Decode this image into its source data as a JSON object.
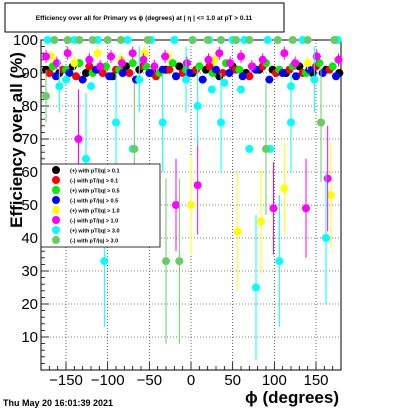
{
  "chart_data": {
    "type": "scatter",
    "title": "Efficiency over all for Primary vs ϕ (degrees) at | η | <= 1.0 at pT > 0.11",
    "xlabel": "ϕ (degrees)",
    "ylabel": "Efficiency over all (%)",
    "xlim": [
      -180,
      180
    ],
    "ylim": [
      0,
      100
    ],
    "x_ticks": [
      -150,
      -100,
      -50,
      0,
      50,
      100,
      150
    ],
    "y_ticks": [
      10,
      20,
      30,
      40,
      50,
      60,
      70,
      80,
      90,
      100
    ],
    "grid": true,
    "legend_placement": "middle-left",
    "series": [
      {
        "name": "(+) with pT/|q| > 0.1",
        "color": "#000000",
        "x": [
          -174,
          -158,
          -142,
          -126,
          -110,
          -94,
          -78,
          -62,
          -46,
          -30,
          -14,
          2,
          18,
          34,
          50,
          66,
          82,
          98,
          114,
          130,
          146,
          162,
          178
        ],
        "y": [
          91,
          90,
          92,
          90,
          91,
          89,
          92,
          91,
          90,
          91,
          92,
          90,
          91,
          89,
          92,
          90,
          91,
          91,
          90,
          92,
          90,
          91,
          90
        ],
        "err": [
          1,
          1,
          1,
          1,
          1,
          1,
          1,
          1,
          1,
          1,
          1,
          1,
          1,
          1,
          1,
          1,
          1,
          1,
          1,
          1,
          1,
          1,
          1
        ]
      },
      {
        "name": "(-) with pT/|q| > 0.1",
        "color": "#ff0000",
        "x": [
          -170,
          -154,
          -138,
          -122,
          -106,
          -90,
          -74,
          -58,
          -42,
          -26,
          -10,
          6,
          22,
          38,
          54,
          70,
          86,
          102,
          118,
          134,
          150,
          166
        ],
        "y": [
          90,
          91,
          89,
          92,
          90,
          91,
          90,
          92,
          89,
          91,
          90,
          91,
          92,
          90,
          91,
          89,
          92,
          90,
          91,
          90,
          92,
          91
        ],
        "err": [
          1,
          1,
          1,
          1,
          1,
          1,
          1,
          1,
          1,
          1,
          1,
          1,
          1,
          1,
          1,
          1,
          1,
          1,
          1,
          1,
          1,
          1
        ]
      },
      {
        "name": "(+) with pT/|q| > 0.5",
        "color": "#00ee00",
        "x": [
          -166,
          -150,
          -134,
          -118,
          -102,
          -86,
          -70,
          -54,
          -38,
          -22,
          -6,
          10,
          26,
          42,
          58,
          74,
          90,
          106,
          122,
          138,
          154,
          170
        ],
        "y": [
          92,
          91,
          93,
          90,
          92,
          91,
          93,
          92,
          90,
          93,
          91,
          92,
          90,
          93,
          91,
          92,
          93,
          91,
          92,
          90,
          93,
          92
        ],
        "err": [
          1,
          1,
          1,
          1,
          1,
          1,
          1,
          1,
          1,
          1,
          1,
          1,
          1,
          1,
          1,
          1,
          1,
          1,
          1,
          1,
          1,
          1
        ]
      },
      {
        "name": "(-) with pT/|q| > 0.5",
        "color": "#0000ff",
        "x": [
          -162,
          -146,
          -130,
          -114,
          -98,
          -82,
          -66,
          -50,
          -34,
          -18,
          -2,
          14,
          30,
          46,
          62,
          78,
          94,
          110,
          126,
          142,
          158,
          174
        ],
        "y": [
          89,
          90,
          88,
          91,
          89,
          90,
          88,
          90,
          91,
          89,
          90,
          88,
          91,
          90,
          89,
          91,
          88,
          90,
          89,
          91,
          90,
          89
        ],
        "err": [
          1,
          1,
          1,
          1,
          1,
          1,
          1,
          1,
          1,
          1,
          1,
          1,
          1,
          1,
          1,
          1,
          1,
          1,
          1,
          1,
          1,
          1
        ]
      },
      {
        "name": "(+) with pT/|q| > 1.0",
        "color": "#ffff00",
        "x": [
          -168,
          -140,
          -112,
          -84,
          -56,
          -28,
          0,
          28,
          56,
          84,
          112,
          140,
          168
        ],
        "y": [
          95,
          93,
          96,
          94,
          96,
          95,
          50,
          94,
          42,
          45,
          55,
          93,
          53
        ],
        "err": [
          2,
          2,
          2,
          2,
          2,
          2,
          15,
          2,
          18,
          16,
          14,
          2,
          16
        ]
      },
      {
        "name": "(-) with pT/|q| > 1.0",
        "color": "#ff00ff",
        "x": [
          -174,
          -161,
          -148,
          -135,
          -122,
          -109,
          -96,
          -83,
          -70,
          -57,
          -44,
          -31,
          -18,
          -5,
          8,
          21,
          34,
          47,
          60,
          73,
          86,
          99,
          112,
          125,
          138,
          151,
          164,
          177
        ],
        "y": [
          95,
          93,
          96,
          70,
          94,
          92,
          95,
          93,
          96,
          94,
          92,
          95,
          50,
          93,
          56,
          94,
          96,
          93,
          95,
          92,
          94,
          49,
          96,
          93,
          49,
          95,
          58,
          94
        ],
        "err": [
          2,
          2,
          2,
          15,
          2,
          2,
          2,
          2,
          2,
          2,
          2,
          2,
          14,
          2,
          15,
          2,
          2,
          2,
          2,
          2,
          2,
          14,
          2,
          2,
          15,
          2,
          16,
          2
        ]
      },
      {
        "name": "(+) with pT/|q| > 3.0",
        "color": "#00ffff",
        "x": [
          -172,
          -158,
          -140,
          -126,
          -112,
          -104,
          -90,
          -76,
          -62,
          -48,
          -34,
          -20,
          -6,
          8,
          22,
          36,
          50,
          64,
          78,
          92,
          106,
          120,
          134,
          148,
          162,
          176
        ],
        "y": [
          100,
          86,
          100,
          64,
          100,
          33,
          75,
          100,
          88,
          100,
          75,
          100,
          88,
          80,
          100,
          75,
          100,
          100,
          25,
          100,
          33,
          75,
          100,
          88,
          40,
          100
        ],
        "err": [
          0,
          8,
          0,
          20,
          0,
          20,
          15,
          0,
          10,
          0,
          15,
          0,
          10,
          12,
          0,
          15,
          0,
          0,
          22,
          0,
          20,
          15,
          0,
          10,
          20,
          0
        ],
        "hi_marks": [
          [
            -150,
            88
          ],
          [
            -120,
            86
          ],
          [
            -70,
            67
          ],
          [
            25,
            85
          ],
          [
            40,
            87
          ],
          [
            60,
            85
          ],
          [
            70,
            67
          ],
          [
            95,
            67
          ],
          [
            120,
            86
          ]
        ]
      },
      {
        "name": "(-) with pT/|q| > 3.0",
        "color": "#66cc66",
        "x": [
          -174,
          -164,
          -148,
          -134,
          -118,
          -100,
          -84,
          -68,
          -52,
          -30,
          -14,
          2,
          20,
          36,
          54,
          70,
          90,
          104,
          122,
          140,
          156,
          172
        ],
        "y": [
          83,
          100,
          100,
          100,
          100,
          100,
          100,
          67,
          100,
          33,
          33,
          100,
          100,
          100,
          100,
          100,
          67,
          100,
          100,
          100,
          75,
          100
        ],
        "err": [
          8,
          0,
          0,
          0,
          0,
          0,
          0,
          20,
          0,
          25,
          25,
          0,
          0,
          0,
          0,
          0,
          20,
          0,
          0,
          0,
          18,
          0
        ]
      }
    ]
  },
  "timestamp": "Thu May 20 16:01:39 2021",
  "colors": {
    "frame": "#000000",
    "grid": "#000000",
    "background": "#ffffff"
  }
}
